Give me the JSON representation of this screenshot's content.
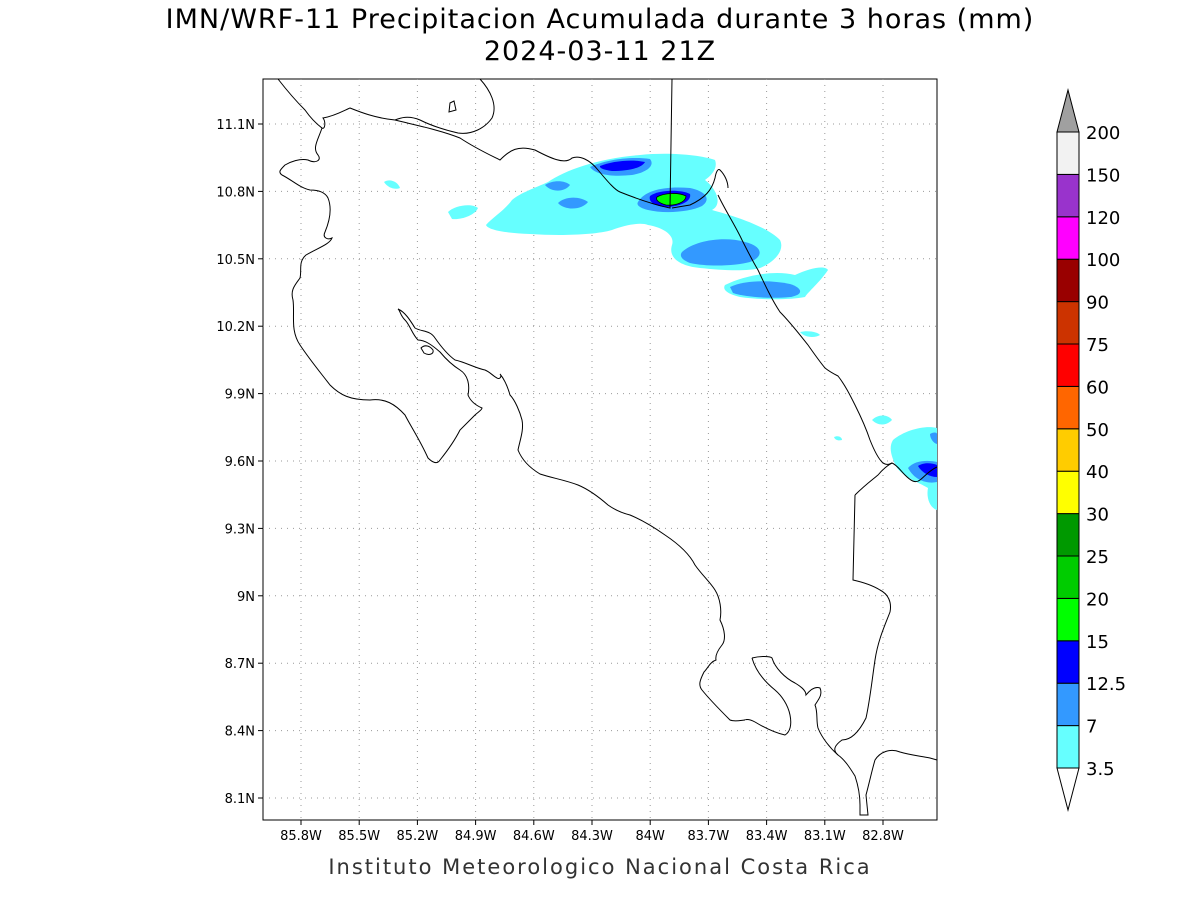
{
  "header": {
    "title": "IMN/WRF-11 Precipitacion Acumulada durante 3 horas (mm)",
    "subtitle": "2024-03-11 21Z"
  },
  "footer": {
    "credit": "Instituto Meteorologico Nacional Costa Rica"
  },
  "map": {
    "lat_ticks": [
      "11.1N",
      "10.8N",
      "10.5N",
      "10.2N",
      "9.9N",
      "9.6N",
      "9.3N",
      "9N",
      "8.7N",
      "8.4N",
      "8.1N"
    ],
    "lon_ticks": [
      "85.8W",
      "85.5W",
      "85.2W",
      "84.9W",
      "84.6W",
      "84.3W",
      "84W",
      "83.7W",
      "83.4W",
      "83.1W",
      "82.8W"
    ],
    "grid": "dotted",
    "coastline_color": "#000000"
  },
  "colorbar": {
    "position": "right",
    "levels": [
      "3.5",
      "7",
      "12.5",
      "15",
      "20",
      "25",
      "30",
      "40",
      "50",
      "60",
      "75",
      "90",
      "100",
      "120",
      "150",
      "200"
    ],
    "colors": [
      "#66ffff",
      "#3399ff",
      "#0000ff",
      "#00ff00",
      "#00cc00",
      "#009900",
      "#ffff00",
      "#ffcc00",
      "#ff6600",
      "#ff0000",
      "#cc3300",
      "#990000",
      "#ff00ff",
      "#9933cc",
      "#f2f2f2"
    ],
    "top_arrow_color": "#a0a0a0",
    "bottom_arrow_color": "#ffffff"
  }
}
